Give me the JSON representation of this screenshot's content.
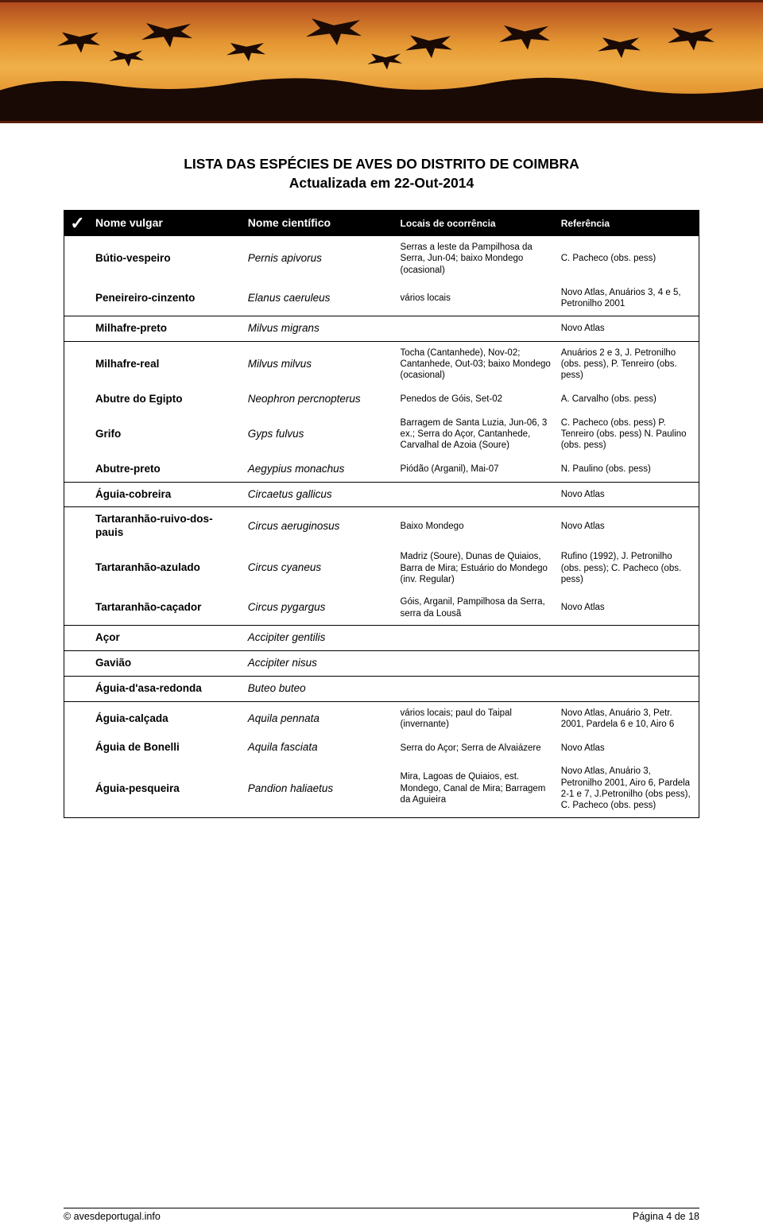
{
  "banner": {
    "sky_gradient_top": "#b24a1e",
    "sky_gradient_mid": "#f0b04a",
    "sky_gradient_bottom": "#b24a1e",
    "silhouette_color": "#1a0a05"
  },
  "title_line1": "LISTA DAS ESPÉCIES DE AVES DO DISTRITO DE COIMBRA",
  "title_line2": "Actualizada em 22-Out-2014",
  "columns": {
    "check": "✓",
    "vulgar": "Nome vulgar",
    "sci": "Nome científico",
    "loc": "Locais de ocorrência",
    "ref": "Referência"
  },
  "groups": [
    {
      "rows": [
        {
          "vulgar": "Bútio-vespeiro",
          "sci": "Pernis apivorus",
          "loc": "Serras a leste da Pampilhosa da Serra, Jun-04; baixo Mondego (ocasional)",
          "ref": "C. Pacheco (obs. pess)"
        },
        {
          "vulgar": "Peneireiro-cinzento",
          "sci": "Elanus caeruleus",
          "loc": "vários locais",
          "ref": "Novo Atlas, Anuários 3, 4 e 5, Petronilho 2001"
        }
      ]
    },
    {
      "rows": [
        {
          "vulgar": "Milhafre-preto",
          "sci": "Milvus migrans",
          "loc": "",
          "ref": "Novo Atlas"
        }
      ]
    },
    {
      "rows": [
        {
          "vulgar": "Milhafre-real",
          "sci": "Milvus milvus",
          "loc": "Tocha (Cantanhede), Nov-02; Cantanhede, Out-03; baixo Mondego (ocasional)",
          "ref": "Anuários 2 e 3, J. Petronilho (obs. pess), P. Tenreiro (obs. pess)"
        },
        {
          "vulgar": "Abutre do Egipto",
          "sci": "Neophron percnopterus",
          "loc": "Penedos de Góis, Set-02",
          "ref": "A. Carvalho (obs. pess)"
        },
        {
          "vulgar": "Grifo",
          "sci": "Gyps fulvus",
          "loc": "Barragem de Santa Luzia, Jun-06, 3 ex.; Serra do Açor, Cantanhede, Carvalhal de Azoia (Soure)",
          "ref": "C. Pacheco (obs. pess) P. Tenreiro (obs. pess) N. Paulino (obs. pess)"
        },
        {
          "vulgar": "Abutre-preto",
          "sci": "Aegypius monachus",
          "loc": "Piódão (Arganil), Mai-07",
          "ref": "N. Paulino (obs. pess)"
        }
      ]
    },
    {
      "rows": [
        {
          "vulgar": "Águia-cobreira",
          "sci": "Circaetus gallicus",
          "loc": "",
          "ref": "Novo Atlas"
        }
      ]
    },
    {
      "rows": [
        {
          "vulgar": "Tartaranhão-ruivo-dos-pauis",
          "sci": "Circus aeruginosus",
          "loc": "Baixo Mondego",
          "ref": "Novo Atlas"
        },
        {
          "vulgar": "Tartaranhão-azulado",
          "sci": "Circus cyaneus",
          "loc": "Madriz (Soure), Dunas de Quiaios, Barra de Mira; Estuário do Mondego (inv. Regular)",
          "ref": "Rufino (1992), J. Petronilho (obs. pess); C. Pacheco (obs. pess)"
        },
        {
          "vulgar": "Tartaranhão-caçador",
          "sci": "Circus pygargus",
          "loc": "Góis, Arganil, Pampilhosa da Serra, serra da Lousã",
          "ref": "Novo Atlas"
        }
      ]
    },
    {
      "rows": [
        {
          "vulgar": "Açor",
          "sci": "Accipiter gentilis",
          "loc": "",
          "ref": ""
        }
      ]
    },
    {
      "rows": [
        {
          "vulgar": "Gavião",
          "sci": "Accipiter nisus",
          "loc": "",
          "ref": ""
        }
      ]
    },
    {
      "rows": [
        {
          "vulgar": "Águia-d'asa-redonda",
          "sci": "Buteo buteo",
          "loc": "",
          "ref": ""
        }
      ]
    },
    {
      "rows": [
        {
          "vulgar": "Águia-calçada",
          "sci": "Aquila pennata",
          "loc": "vários locais;\npaul do Taipal (invernante)",
          "ref": "Novo Atlas, Anuário 3, Petr. 2001, Pardela 6 e 10, Airo 6"
        },
        {
          "vulgar": "Águia de Bonelli",
          "sci": "Aquila fasciata",
          "loc": "Serra do Açor;\nSerra de Alvaiázere",
          "ref": "Novo Atlas"
        },
        {
          "vulgar": "Águia-pesqueira",
          "sci": "Pandion haliaetus",
          "loc": "Mira, Lagoas de Quiaios, est. Mondego, Canal de Mira; Barragem da Aguieira",
          "ref": "Novo Atlas, Anuário 3, Petronilho 2001, Airo 6, Pardela 2-1 e 7, J.Petronilho (obs pess), C. Pacheco (obs. pess)"
        }
      ]
    }
  ],
  "footer": {
    "left": "© avesdeportugal.info",
    "right": "Página 4 de 18"
  }
}
